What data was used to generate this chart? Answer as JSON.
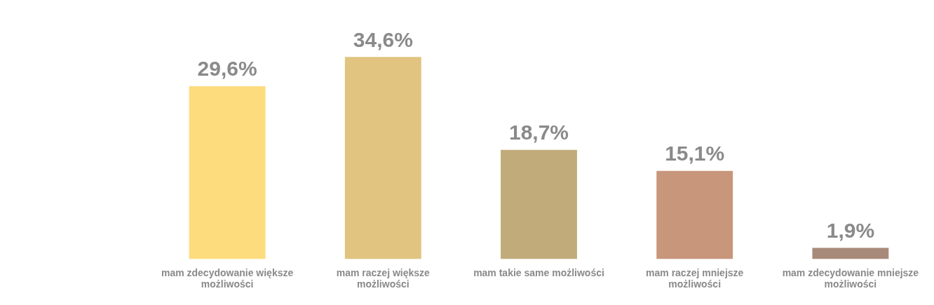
{
  "chart_data": {
    "type": "bar",
    "categories": [
      "mam zdecydowanie większe możliwości",
      "mam raczej większe możliwości",
      "mam takie same możliwości",
      "mam raczej mniejsze możliwości",
      "mam zdecydowanie mniejsze możliwości"
    ],
    "values": [
      29.6,
      34.6,
      18.7,
      15.1,
      1.9
    ],
    "colors": [
      "#fddc7e",
      "#e0c47f",
      "#c1ab7a",
      "#c8967b",
      "#a88a7a"
    ],
    "value_labels": [
      "29,6%",
      "34,6%",
      "18,7%",
      "15,1%",
      "1,9%"
    ],
    "grid": false,
    "legend": false
  }
}
